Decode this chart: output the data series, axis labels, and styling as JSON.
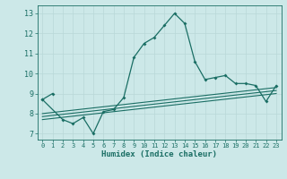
{
  "xlabel": "Humidex (Indice chaleur)",
  "xlim": [
    -0.5,
    23.5
  ],
  "ylim": [
    6.7,
    13.4
  ],
  "yticks": [
    7,
    8,
    9,
    10,
    11,
    12,
    13
  ],
  "xticks": [
    0,
    1,
    2,
    3,
    4,
    5,
    6,
    7,
    8,
    9,
    10,
    11,
    12,
    13,
    14,
    15,
    16,
    17,
    18,
    19,
    20,
    21,
    22,
    23
  ],
  "background_color": "#cce8e8",
  "grid_color": "#b8d8d8",
  "line_color": "#1a6e64",
  "line1_x": [
    0,
    1
  ],
  "line1_y": [
    8.7,
    9.0
  ],
  "line2_x": [
    0,
    2,
    3,
    4,
    5,
    6,
    7,
    8,
    9,
    10,
    11,
    12,
    13,
    14,
    15,
    16,
    17,
    18,
    19,
    20,
    21,
    22,
    23
  ],
  "line2_y": [
    8.7,
    7.7,
    7.5,
    7.8,
    7.0,
    8.1,
    8.2,
    8.8,
    10.8,
    11.5,
    11.8,
    12.4,
    13.0,
    12.5,
    10.6,
    9.7,
    9.8,
    9.9,
    9.5,
    9.5,
    9.4,
    8.6,
    9.4
  ],
  "line3_x": [
    0,
    23
  ],
  "line3_y": [
    8.0,
    9.3
  ],
  "line4_x": [
    0,
    23
  ],
  "line4_y": [
    7.85,
    9.15
  ],
  "line5_x": [
    0,
    23
  ],
  "line5_y": [
    7.7,
    9.0
  ]
}
